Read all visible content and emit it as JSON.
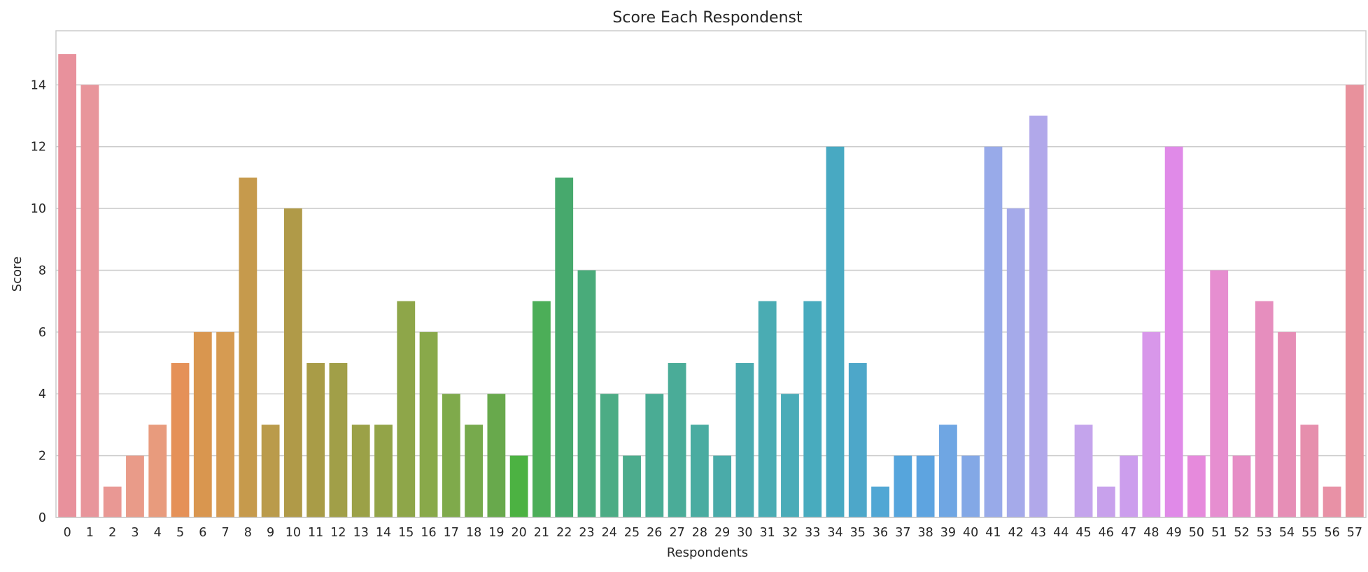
{
  "chart_data": {
    "type": "bar",
    "title": "Score Each Respondenst",
    "xlabel": "Respondents",
    "ylabel": "Score",
    "categories": [
      "0",
      "1",
      "2",
      "3",
      "4",
      "5",
      "6",
      "7",
      "8",
      "9",
      "10",
      "11",
      "12",
      "13",
      "14",
      "15",
      "16",
      "17",
      "18",
      "19",
      "20",
      "21",
      "22",
      "23",
      "24",
      "25",
      "26",
      "27",
      "28",
      "29",
      "30",
      "31",
      "32",
      "33",
      "34",
      "35",
      "36",
      "37",
      "38",
      "39",
      "40",
      "41",
      "42",
      "43",
      "44",
      "45",
      "46",
      "47",
      "48",
      "49",
      "50",
      "51",
      "52",
      "53",
      "54",
      "55",
      "56",
      "57"
    ],
    "values": [
      15,
      14,
      1,
      2,
      3,
      5,
      6,
      6,
      11,
      3,
      10,
      5,
      5,
      3,
      3,
      7,
      6,
      4,
      3,
      4,
      2,
      7,
      11,
      8,
      4,
      2,
      4,
      5,
      3,
      2,
      5,
      7,
      4,
      7,
      12,
      5,
      1,
      2,
      2,
      3,
      2,
      12,
      10,
      13,
      0,
      3,
      1,
      2,
      6,
      12,
      2,
      8,
      2,
      7,
      6,
      3,
      1,
      14
    ],
    "colors": [
      "#e8919c",
      "#e8959b",
      "#e99894",
      "#e99b89",
      "#e89b7d",
      "#e59158",
      "#d9964f",
      "#d69b52",
      "#c69a4c",
      "#ba9b4b",
      "#b09a48",
      "#a99c47",
      "#a19f48",
      "#9ba147",
      "#93a448",
      "#8ea649",
      "#89a94a",
      "#7faa4b",
      "#77aa4d",
      "#68a94c",
      "#4cb242",
      "#4cae58",
      "#47a96d",
      "#49ab7a",
      "#4cac85",
      "#4cac8d",
      "#4aac94",
      "#4aac98",
      "#4aaca1",
      "#4aaba9",
      "#4aabb0",
      "#4aacb3",
      "#4aacb8",
      "#48abbe",
      "#48a9c2",
      "#4da7c9",
      "#51a7d4",
      "#56a5dc",
      "#5ea4e0",
      "#6fa6e3",
      "#83a8e6",
      "#98aae9",
      "#a5aaea",
      "#b1a8ea",
      "#c0a7eb",
      "#c4a4ec",
      "#c8a1ec",
      "#cc9eed",
      "#d897ea",
      "#e08ae8",
      "#e68adc",
      "#e68ed0",
      "#e68ec6",
      "#e68ebe",
      "#e68eb6",
      "#e68fad",
      "#e891a6",
      "#e8919c"
    ],
    "ylim": [
      0,
      15.75
    ],
    "yticks": [
      0,
      2,
      4,
      6,
      8,
      10,
      12,
      14
    ],
    "grid": "horizontal"
  }
}
